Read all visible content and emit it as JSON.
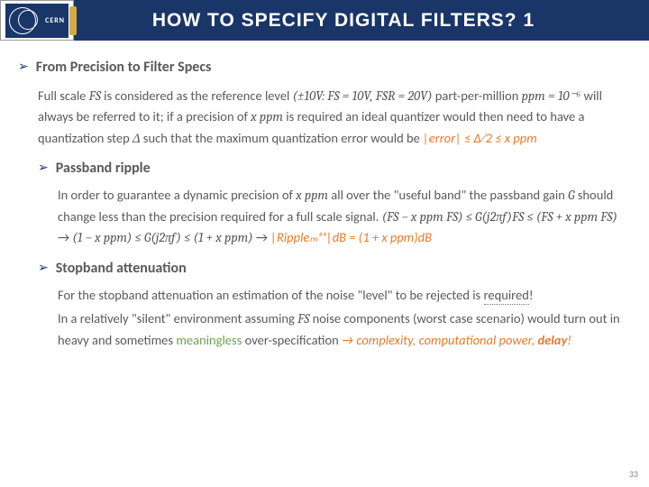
{
  "header": {
    "logo_text": "CERN",
    "title": "HOW TO SPECIFY DIGITAL FILTERS? 1"
  },
  "section1": {
    "heading": "From Precision to Filter Specs",
    "p1a": "Full scale ",
    "p1_fs": "FS",
    "p1b": " is considered as the reference level ",
    "p1_math1": "(±10V: FS = 10V, FSR = 20V)",
    "p1c": " part-per-million ",
    "p1_math2": "ppm = 10⁻⁶",
    "p1d": " will always be referred to it; if a precision of ",
    "p1_math3": "x ppm",
    "p1e": " is required an ideal quantizer would then need to have a quantization step ",
    "p1_delta": "Δ",
    "p1f": " such that the maximum quantization error would be ",
    "p1_math4": "|error| ≤ Δ⁄2 ≤ x ppm"
  },
  "section2": {
    "heading": "Passband ripple",
    "p1a": "In order to guarantee a dynamic precision of ",
    "p1_math1": "x ppm",
    "p1b": " all over the \"useful band\" the passband gain ",
    "p1_g": "G",
    "p1c": " should change less than the precision required for a full scale signal. ",
    "p1_math2": "(FS − x ppm FS) ≤ G(j2πf)FS ≤ (FS + x ppm FS)",
    "p1_arrow1": " → ",
    "p1_math3": "(1 − x ppm) ≤ G(j2πf) ≤ (1 + x ppm)",
    "p1_arrow2": " → ",
    "p1_math4": "|Rippleₘₐₓ|dB = (1 + x ppm)dB"
  },
  "section3": {
    "heading": "Stopband attenuation",
    "p1a": "For the stopband attenuation an estimation of the noise \"level\" to be rejected is ",
    "p1_req": "required",
    "p1b": "!",
    "p2a": "In a relatively \"silent\" environment assuming ",
    "p2_fs": "FS",
    "p2b": " noise components (worst case scenario) would turn out in heavy and sometimes ",
    "p2_meaningless": "meaningless",
    "p2c": " over-specification ",
    "p2_arrow": "→",
    "p2_complexity": " complexity, computational power, ",
    "p2_delay": "delay",
    "p2d": "!"
  },
  "page_number": "33",
  "colors": {
    "header_bg": "#1a3668",
    "text": "#595959",
    "orange": "#e87a2a",
    "green": "#6fa04a"
  }
}
